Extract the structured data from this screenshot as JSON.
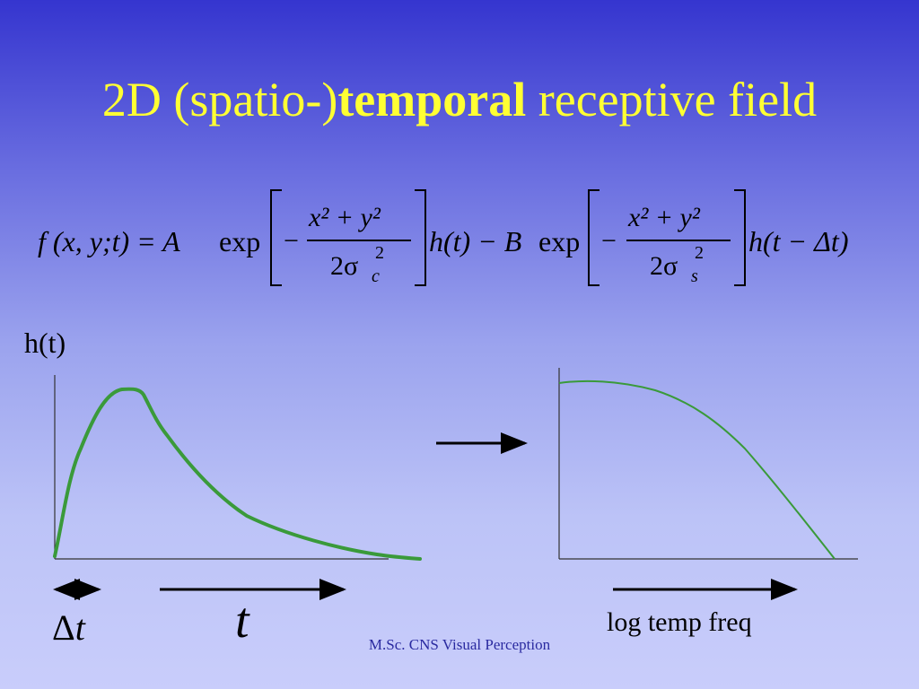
{
  "slide": {
    "title_prefix": "2D (spatio-)",
    "title_bold": "temporal",
    "title_suffix": " receptive field",
    "y_label": "h(t)",
    "delta_t_label": "Δ",
    "delta_t_var": "t",
    "t_label": "t",
    "freq_label": "log temp freq",
    "footer": "M.Sc. CNS Visual Perception"
  },
  "equation": {
    "lhs": "f (x, y;t) = A",
    "exp": "exp",
    "minus": "−",
    "numerator": "x² + y²",
    "denominator_c": "2σ",
    "sub_c": "c",
    "sup2": "2",
    "h_t": "h(t) − B",
    "denominator_s": "2σ",
    "sub_s": "s",
    "h_dt": "h(t − Δt)"
  },
  "colors": {
    "title": "#ffff33",
    "curve": "#3a9a3a",
    "axis": "#333333",
    "arrow": "#000000"
  }
}
